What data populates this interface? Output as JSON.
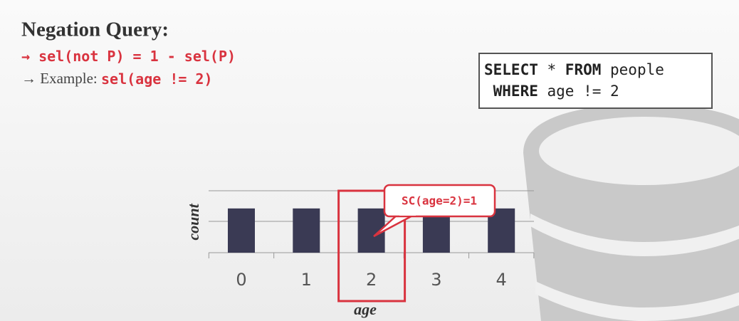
{
  "header": {
    "title": "Negation Query:"
  },
  "bullets": [
    [
      {
        "text": "→ sel(not P) = 1 - sel(P)",
        "code": true
      }
    ],
    [
      {
        "text": "→ Example: ",
        "code": false
      },
      {
        "text": "sel(age != 2)",
        "code": true
      }
    ]
  ],
  "sql": {
    "lines": [
      [
        {
          "text": "SELECT",
          "bold": true
        },
        {
          "text": " * ",
          "bold": false
        },
        {
          "text": "FROM",
          "bold": true
        },
        {
          "text": " people",
          "bold": false
        }
      ],
      [
        {
          "text": " WHERE",
          "bold": true
        },
        {
          "text": " age != 2",
          "bold": false
        }
      ]
    ]
  },
  "callout": "SC(age=2)=1",
  "chart_data": {
    "type": "bar",
    "x_label": "age",
    "y_label": "count",
    "categories": [
      "0",
      "1",
      "2",
      "3",
      "4"
    ],
    "values": [
      1,
      1,
      1,
      1,
      1
    ],
    "color": "#3a3a54",
    "ylim": [
      0,
      1.4
    ],
    "highlight": 2
  }
}
